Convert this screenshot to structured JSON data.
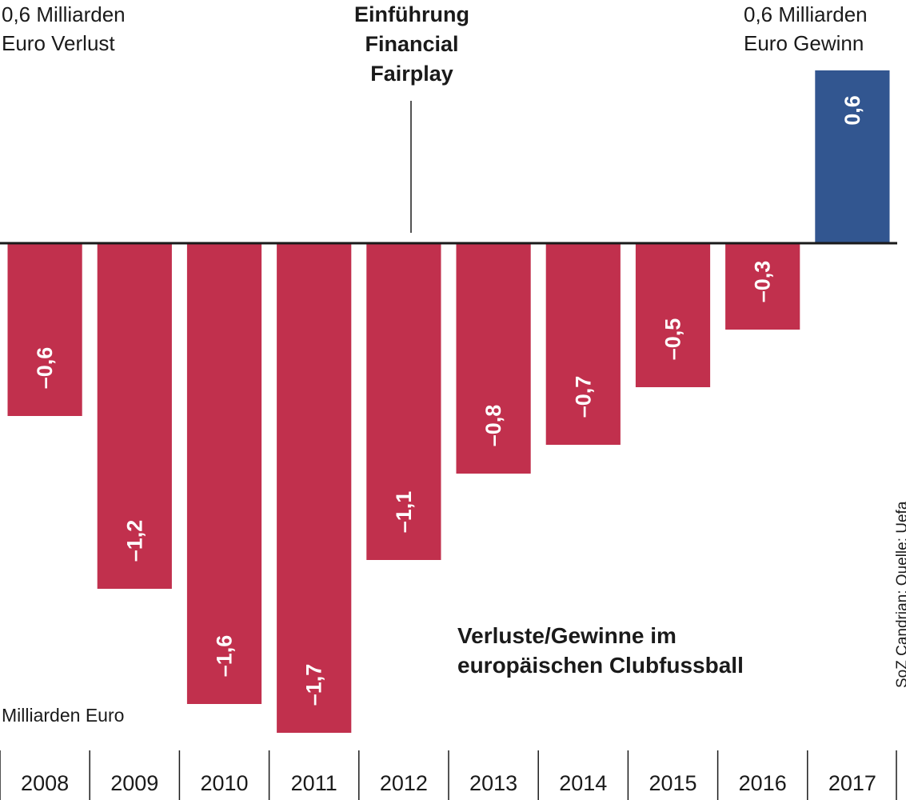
{
  "chart_data": {
    "type": "bar",
    "title": "Verluste/Gewinne im europäischen Clubfussball",
    "title_lines": [
      "Verluste/Gewinne im",
      "europäischen Clubfussball"
    ],
    "unit_label": "Milliarden Euro",
    "categories": [
      "2008",
      "2009",
      "2010",
      "2011",
      "2012",
      "2013",
      "2014",
      "2015",
      "2016",
      "2017"
    ],
    "values": [
      -0.6,
      -1.2,
      -1.6,
      -1.7,
      -1.1,
      -0.8,
      -0.7,
      -0.5,
      -0.3,
      0.6
    ],
    "value_labels": [
      "–0,6",
      "–1,2",
      "–1,6",
      "–1,7",
      "–1,1",
      "–0,8",
      "–0,7",
      "–0,5",
      "–0,3",
      "0,6"
    ],
    "ylim": [
      -1.7,
      0.6
    ],
    "colors": {
      "negative": "#c1304d",
      "positive": "#325690",
      "axis": "#1a1a1a",
      "label_text": "#ffffff"
    },
    "annotations": {
      "loss_label": [
        "0,6 Milliarden",
        "Euro Verlust"
      ],
      "gain_label": [
        "0,6 Milliarden",
        "Euro Gewinn"
      ],
      "event_label": [
        "Einführung",
        "Financial",
        "Fairplay"
      ],
      "event_year": "2012"
    },
    "source": "SoZ Candrian; Quelle: Uefa"
  }
}
